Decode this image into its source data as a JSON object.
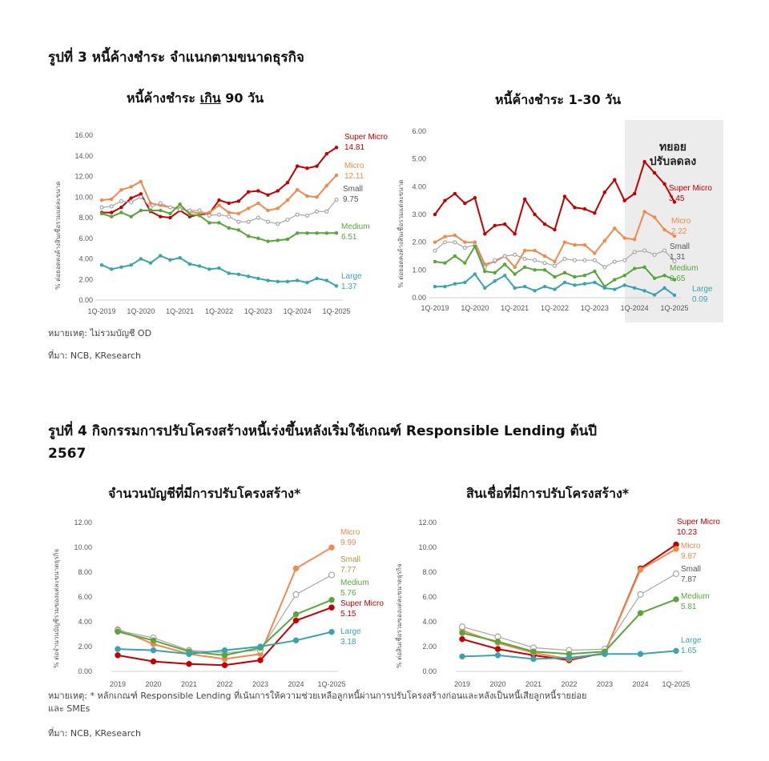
{
  "figure3": {
    "title": "รูปที่ 3  หนี้ค้างชำระ จำแนกตามขนาดธุรกิจ",
    "note": "หมายเหตุ: ไม่รวมบัญชี OD",
    "source": "ที่มา: NCB, KResearch"
  },
  "figure4": {
    "title_line1": "รูปที่ 4  กิจกรรมการปรับโครงสร้างหนี้เร่งขึ้นหลังเริ่มใช้เกณฑ์ Responsible Lending ต้นปี",
    "title_line2": "2567",
    "note_line1": "หมายเหตุ: * หลักเกณฑ์ Responsible Lending ที่เน้นการให้ความช่วยเหลือลูกหนี้ผ่านการปรับโครงสร้างก่อนและหลังเป็นหนี้เสียลูกหนี้รายย่อย",
    "note_line2": "และ SMEs",
    "source": "ที่มา: NCB, KResearch"
  },
  "colors": {
    "Super Micro": "#c00000",
    "Micro": "#ef8a4c",
    "Small": "#a6a6a6",
    "Medium": "#5aa43c",
    "Large": "#3aa3ae",
    "Small label (figure 4)": "#a79a3a"
  },
  "chart_data": [
    {
      "type": "line",
      "title": "หนี้ค้างชำระ เกิน 90 วัน",
      "title_underlined_word": "เกิน",
      "ylabel": "% ต่อยอดคงค้างสินเชื่อรวมแต่ละขนาด",
      "ylim": [
        0,
        16
      ],
      "yticks": [
        "0.00",
        "2.00",
        "4.00",
        "6.00",
        "8.00",
        "10.00",
        "12.00",
        "14.00",
        "16.00"
      ],
      "xtick_labels": [
        "1Q-2019",
        "1Q-2020",
        "1Q-2021",
        "1Q-2022",
        "1Q-2023",
        "1Q-2024",
        "1Q-2025"
      ],
      "x_frequency": "quarterly 1Q-2019 to 1Q-2025",
      "series": [
        {
          "name": "Super Micro",
          "last_label": "14.81",
          "values": [
            8.5,
            8.5,
            9.0,
            9.9,
            10.3,
            8.6,
            8.1,
            8.0,
            8.7,
            8.1,
            8.3,
            8.4,
            9.7,
            9.4,
            9.6,
            10.5,
            10.6,
            10.2,
            10.6,
            11.4,
            13.0,
            12.8,
            13.0,
            14.2,
            14.81
          ]
        },
        {
          "name": "Micro",
          "last_label": "12.11",
          "values": [
            9.7,
            9.8,
            10.7,
            11.0,
            11.5,
            9.4,
            9.2,
            9.0,
            8.9,
            8.6,
            8.4,
            8.5,
            9.2,
            8.5,
            8.4,
            8.9,
            9.4,
            8.7,
            8.9,
            9.7,
            10.7,
            10.1,
            10.0,
            11.1,
            12.11
          ]
        },
        {
          "name": "Small",
          "last_label": "9.75",
          "values": [
            9.0,
            9.1,
            9.6,
            9.5,
            10.0,
            9.0,
            9.4,
            9.0,
            8.8,
            8.7,
            8.7,
            8.2,
            8.3,
            8.1,
            7.6,
            7.6,
            8.0,
            7.6,
            7.4,
            7.8,
            8.3,
            8.2,
            8.6,
            8.6,
            9.75
          ]
        },
        {
          "name": "Medium",
          "last_label": "6.51",
          "values": [
            8.4,
            8.1,
            8.5,
            8.1,
            8.7,
            8.7,
            8.7,
            8.4,
            9.3,
            8.3,
            8.2,
            7.5,
            7.5,
            7.0,
            6.8,
            6.2,
            6.0,
            5.7,
            5.8,
            5.9,
            6.5,
            6.5,
            6.5,
            6.5,
            6.51
          ]
        },
        {
          "name": "Large",
          "last_label": "1.37",
          "values": [
            3.4,
            3.0,
            3.2,
            3.4,
            4.0,
            3.6,
            4.3,
            3.9,
            4.1,
            3.5,
            3.3,
            3.0,
            3.1,
            2.6,
            2.5,
            2.3,
            2.1,
            1.9,
            1.8,
            1.8,
            1.9,
            1.7,
            2.1,
            1.9,
            1.37
          ]
        }
      ]
    },
    {
      "type": "line",
      "title": "หนี้ค้างชำระ 1-30 วัน",
      "ylabel": "% ต่อยอดคงค้างสินเชื่อรวมแต่ละขนาด",
      "ylim": [
        0,
        6
      ],
      "yticks": [
        "0.00",
        "1.00",
        "2.00",
        "3.00",
        "4.00",
        "5.00",
        "6.00"
      ],
      "xtick_labels": [
        "1Q-2019",
        "1Q-2020",
        "1Q-2021",
        "1Q-2022",
        "1Q-2023",
        "1Q-2024",
        "1Q-2025"
      ],
      "x_frequency": "quarterly 1Q-2019 to 1Q-2025",
      "annotation_line1": "ทยอย",
      "annotation_line2": "ปรับลดลง",
      "shaded_period": "1Q-2024 to 1Q-2025",
      "series": [
        {
          "name": "Super Micro",
          "last_label": "3.45",
          "values": [
            3.0,
            3.5,
            3.75,
            3.4,
            3.6,
            2.3,
            2.6,
            2.65,
            2.3,
            3.55,
            3.0,
            2.65,
            2.45,
            3.65,
            3.25,
            3.2,
            3.05,
            3.8,
            4.25,
            3.5,
            3.75,
            4.9,
            4.5,
            4.1,
            3.45
          ]
        },
        {
          "name": "Micro",
          "last_label": "2.22",
          "values": [
            2.0,
            2.2,
            2.25,
            2.0,
            2.0,
            1.2,
            1.3,
            1.5,
            1.1,
            1.7,
            1.7,
            1.5,
            1.3,
            2.0,
            1.9,
            1.9,
            1.6,
            2.05,
            2.5,
            2.15,
            2.1,
            3.1,
            2.9,
            2.45,
            2.22
          ]
        },
        {
          "name": "Small",
          "last_label": "1.31",
          "values": [
            1.7,
            2.0,
            2.0,
            1.8,
            1.9,
            1.1,
            1.35,
            1.5,
            1.55,
            1.4,
            1.35,
            1.25,
            1.15,
            1.4,
            1.35,
            1.35,
            1.35,
            1.1,
            1.3,
            1.35,
            1.65,
            1.7,
            1.55,
            1.7,
            1.31
          ]
        },
        {
          "name": "Medium",
          "last_label": "0.65",
          "values": [
            1.3,
            1.25,
            1.5,
            1.25,
            1.85,
            0.95,
            0.9,
            1.2,
            0.85,
            1.1,
            1.0,
            1.0,
            0.75,
            0.9,
            0.75,
            0.8,
            0.95,
            0.4,
            0.65,
            0.8,
            1.05,
            1.1,
            0.7,
            0.8,
            0.65
          ]
        },
        {
          "name": "Large",
          "last_label": "0.09",
          "values": [
            0.4,
            0.4,
            0.5,
            0.55,
            0.85,
            0.35,
            0.6,
            0.8,
            0.35,
            0.4,
            0.25,
            0.4,
            0.3,
            0.55,
            0.45,
            0.5,
            0.55,
            0.35,
            0.3,
            0.45,
            0.35,
            0.25,
            0.1,
            0.35,
            0.09
          ]
        }
      ]
    },
    {
      "type": "line",
      "title": "จำนวนบัญชีที่มีการปรับโครงสร้าง*",
      "ylabel": "% ต่อจำนวนบัญชีรวมของแต่ละขนาดธุรกิจ",
      "ylim": [
        0,
        12
      ],
      "yticks": [
        "0.00",
        "2.00",
        "4.00",
        "6.00",
        "8.00",
        "10.00",
        "12.00"
      ],
      "categories": [
        "2019",
        "2020",
        "2021",
        "2022",
        "2023",
        "2024",
        "1Q-2025"
      ],
      "series": [
        {
          "name": "Micro",
          "last_label": "9.99",
          "values": [
            3.4,
            2.2,
            1.4,
            1.0,
            1.4,
            8.3,
            9.99
          ]
        },
        {
          "name": "Small",
          "last_label": "7.77",
          "values": [
            3.3,
            2.7,
            1.7,
            1.5,
            1.7,
            6.2,
            7.77
          ]
        },
        {
          "name": "Medium",
          "last_label": "5.76",
          "values": [
            3.2,
            2.5,
            1.6,
            1.3,
            1.9,
            4.6,
            5.76
          ]
        },
        {
          "name": "Super Micro",
          "last_label": "5.15",
          "values": [
            1.3,
            0.8,
            0.6,
            0.5,
            0.9,
            4.1,
            5.15
          ]
        },
        {
          "name": "Large",
          "last_label": "3.18",
          "values": [
            1.8,
            1.7,
            1.4,
            1.7,
            2.0,
            2.5,
            3.18
          ]
        }
      ]
    },
    {
      "type": "line",
      "title": "สินเชื่อที่มีการปรับโครงสร้าง*",
      "ylabel": "% ต่อสินเชื่อรวมของแต่ละขนาดธุรกิจ",
      "ylim": [
        0,
        12
      ],
      "yticks": [
        "0.00",
        "2.00",
        "4.00",
        "6.00",
        "8.00",
        "10.00",
        "12.00"
      ],
      "categories": [
        "2019",
        "2020",
        "2021",
        "2022",
        "2023",
        "2024",
        "1Q-2025"
      ],
      "series": [
        {
          "name": "Super Micro",
          "last_label": "10.23",
          "values": [
            2.6,
            1.8,
            1.3,
            0.9,
            1.5,
            8.3,
            10.23
          ]
        },
        {
          "name": "Micro",
          "last_label": "9.87",
          "values": [
            3.3,
            2.3,
            1.5,
            1.0,
            1.5,
            8.2,
            9.87
          ]
        },
        {
          "name": "Small",
          "last_label": "7.87",
          "values": [
            3.6,
            2.8,
            1.9,
            1.7,
            1.8,
            6.2,
            7.87
          ]
        },
        {
          "name": "Medium",
          "last_label": "5.81",
          "values": [
            3.1,
            2.4,
            1.6,
            1.4,
            1.6,
            4.7,
            5.81
          ]
        },
        {
          "name": "Large",
          "last_label": "1.65",
          "values": [
            1.2,
            1.3,
            1.0,
            1.1,
            1.4,
            1.4,
            1.65
          ]
        }
      ]
    }
  ]
}
